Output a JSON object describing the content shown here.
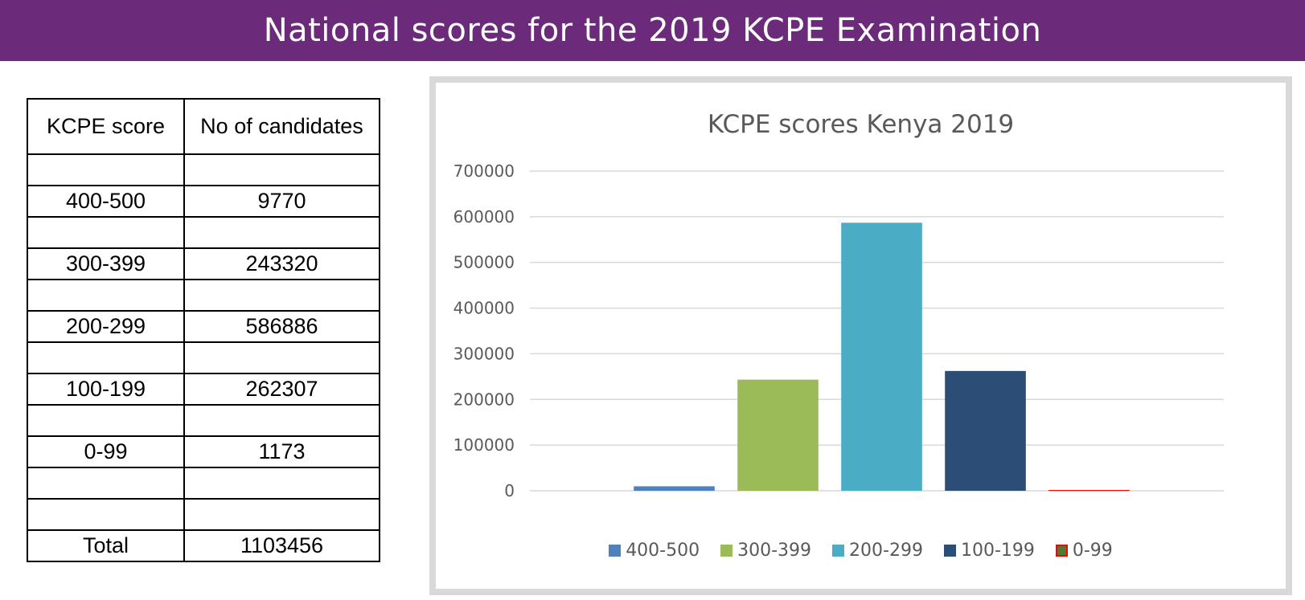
{
  "banner": {
    "title": "National scores for the 2019 KCPE Examination"
  },
  "table": {
    "headers": [
      "KCPE score",
      "No of candidates"
    ],
    "rows": [
      [
        "",
        ""
      ],
      [
        "400-500",
        "9770"
      ],
      [
        "",
        ""
      ],
      [
        "300-399",
        "243320"
      ],
      [
        "",
        ""
      ],
      [
        "200-299",
        "586886"
      ],
      [
        "",
        ""
      ],
      [
        "100-199",
        "262307"
      ],
      [
        "",
        ""
      ],
      [
        "0-99",
        "1173"
      ],
      [
        "",
        ""
      ],
      [
        "",
        ""
      ],
      [
        "Total",
        "1103456"
      ]
    ]
  },
  "chart_data": {
    "type": "bar",
    "title": "KCPE  scores Kenya 2019",
    "xlabel": "",
    "ylabel": "",
    "ylim": [
      0,
      700000
    ],
    "yticks": [
      0,
      100000,
      200000,
      300000,
      400000,
      500000,
      600000,
      700000
    ],
    "grid": true,
    "legend_position": "bottom",
    "series": [
      {
        "name": "400-500",
        "values": [
          9770
        ],
        "color": "#4f81bd"
      },
      {
        "name": "300-399",
        "values": [
          243320
        ],
        "color": "#9bbb59"
      },
      {
        "name": "200-299",
        "values": [
          586886
        ],
        "color": "#4bacc6"
      },
      {
        "name": "100-199",
        "values": [
          262307
        ],
        "color": "#2c4d75"
      },
      {
        "name": "0-99",
        "values": [
          1173
        ],
        "color": "#ff0000",
        "legend_fill": "#4e7a32"
      }
    ]
  }
}
